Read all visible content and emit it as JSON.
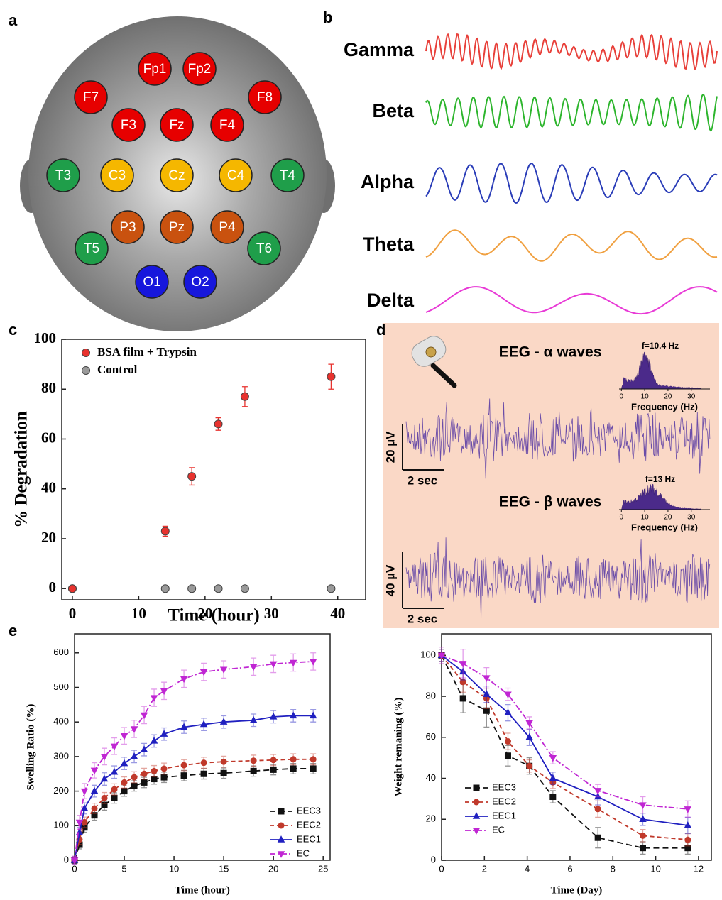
{
  "panel_labels": [
    "a",
    "b",
    "c",
    "d",
    "e"
  ],
  "electrodes": [
    {
      "label": "Fp1",
      "color": "#e60000"
    },
    {
      "label": "Fp2",
      "color": "#e60000"
    },
    {
      "label": "F7",
      "color": "#e60000"
    },
    {
      "label": "F8",
      "color": "#e60000"
    },
    {
      "label": "F3",
      "color": "#e60000"
    },
    {
      "label": "Fz",
      "color": "#e60000"
    },
    {
      "label": "F4",
      "color": "#e60000"
    },
    {
      "label": "T3",
      "color": "#1f9e4a"
    },
    {
      "label": "C3",
      "color": "#f5b700"
    },
    {
      "label": "Cz",
      "color": "#f5b700"
    },
    {
      "label": "C4",
      "color": "#f5b700"
    },
    {
      "label": "T4",
      "color": "#1f9e4a"
    },
    {
      "label": "P3",
      "color": "#c9520f"
    },
    {
      "label": "Pz",
      "color": "#c9520f"
    },
    {
      "label": "P4",
      "color": "#c9520f"
    },
    {
      "label": "T5",
      "color": "#1f9e4a"
    },
    {
      "label": "T6",
      "color": "#1f9e4a"
    },
    {
      "label": "O1",
      "color": "#1717dc"
    },
    {
      "label": "O2",
      "color": "#1717dc"
    }
  ],
  "waves": [
    {
      "name": "Gamma",
      "color": "#e8403a"
    },
    {
      "name": "Beta",
      "color": "#2db52d"
    },
    {
      "name": "Alpha",
      "color": "#2a3db8"
    },
    {
      "name": "Theta",
      "color": "#f0a040"
    },
    {
      "name": "Delta",
      "color": "#e83ad6"
    }
  ],
  "eeg": {
    "alpha_title": "EEG  - α waves",
    "alpha_peak": "f=10.4 Hz",
    "beta_title": "EEG  - β waves",
    "beta_peak": "f=13 Hz",
    "frequency_label": "Frequency (Hz)",
    "inset_xlim": [
      -1,
      38
    ],
    "inset_xticks": [
      0,
      10,
      20,
      30
    ],
    "alpha_scale": "20 µV",
    "beta_scale": "40 µV",
    "time_scale": "2 sec",
    "background": "#fad8c6",
    "trace_color": "#6a4ca8"
  },
  "chart_data": [
    {
      "type": "scatter",
      "xlabel": "Time (hour)",
      "ylabel": "% Degradation",
      "xlim": [
        -1.6,
        44.2
      ],
      "ylim": [
        -4.5,
        100
      ],
      "xticks": [
        0,
        10,
        20,
        30,
        40
      ],
      "yticks": [
        0,
        20,
        40,
        60,
        80,
        100
      ],
      "legend": "upper left",
      "series": [
        {
          "name": "BSA film + Trypsin",
          "color": "#e8322e",
          "marker": "circle",
          "x": [
            0,
            14,
            18,
            22,
            26,
            39
          ],
          "values": [
            0,
            23,
            45,
            66,
            77,
            85
          ],
          "errors": [
            0,
            2,
            3.5,
            2.5,
            4,
            5
          ]
        },
        {
          "name": "Control",
          "color": "#9a9a9a",
          "marker": "circle",
          "x": [
            0,
            14,
            18,
            22,
            26,
            39
          ],
          "values": [
            0,
            0,
            0,
            0,
            0,
            0
          ]
        }
      ]
    },
    {
      "type": "line",
      "xlabel": "Time (hour)",
      "ylabel": "Swelling Ratio (%)",
      "xlim": [
        0,
        25.7
      ],
      "ylim": [
        0,
        655
      ],
      "xticks": [
        0,
        5,
        10,
        15,
        20,
        25
      ],
      "yticks": [
        0,
        100,
        200,
        300,
        400,
        500,
        600
      ],
      "legend": "lower right",
      "x": [
        0,
        0.5,
        1,
        2,
        3,
        4,
        5,
        6,
        7,
        8,
        9,
        11,
        13,
        15,
        18,
        20,
        22,
        24
      ],
      "series": [
        {
          "name": "EEC3",
          "color": "#111111",
          "marker": "square",
          "dash": "8,5",
          "values": [
            0,
            45,
            95,
            130,
            160,
            180,
            200,
            215,
            225,
            235,
            240,
            245,
            250,
            252,
            258,
            262,
            265,
            265
          ],
          "errors": [
            10,
            12,
            14,
            14,
            15,
            15,
            15,
            15,
            15,
            15,
            15,
            15,
            15,
            15,
            15,
            15,
            15,
            15
          ]
        },
        {
          "name": "EEC2",
          "color": "#c0392b",
          "marker": "circle",
          "dash": "6,4",
          "values": [
            0,
            60,
            110,
            150,
            180,
            205,
            225,
            240,
            250,
            258,
            265,
            275,
            282,
            285,
            288,
            290,
            292,
            292
          ],
          "errors": [
            10,
            14,
            15,
            15,
            16,
            16,
            16,
            16,
            16,
            16,
            16,
            16,
            16,
            16,
            16,
            16,
            16,
            16
          ]
        },
        {
          "name": "EEC1",
          "color": "#2020c0",
          "marker": "triangle",
          "values": [
            0,
            80,
            150,
            200,
            235,
            255,
            280,
            300,
            320,
            345,
            365,
            385,
            393,
            400,
            405,
            415,
            418,
            418
          ],
          "errors": [
            10,
            15,
            16,
            17,
            18,
            18,
            18,
            18,
            18,
            18,
            18,
            18,
            18,
            18,
            18,
            18,
            18,
            18
          ]
        },
        {
          "name": "EC",
          "color": "#c026d3",
          "marker": "triangle-down",
          "dash": "8,3,2,3",
          "values": [
            0,
            110,
            200,
            260,
            300,
            330,
            360,
            380,
            420,
            470,
            490,
            525,
            545,
            552,
            560,
            568,
            572,
            575
          ],
          "errors": [
            12,
            20,
            22,
            22,
            24,
            24,
            24,
            25,
            25,
            25,
            25,
            25,
            25,
            25,
            25,
            25,
            25,
            25
          ]
        }
      ]
    },
    {
      "type": "line",
      "xlabel": "Time (Day)",
      "ylabel": "Weight remaning (%)",
      "xlim": [
        0,
        12.6
      ],
      "ylim": [
        0,
        110.5
      ],
      "xticks": [
        0,
        2,
        4,
        6,
        8,
        10,
        12
      ],
      "yticks": [
        0,
        20,
        40,
        60,
        80,
        100
      ],
      "legend": "lower left",
      "x": [
        0,
        1,
        2.1,
        3.1,
        4.1,
        5.2,
        7.3,
        9.4,
        11.5
      ],
      "series": [
        {
          "name": "EEC3",
          "color": "#111111",
          "marker": "square",
          "dash": "8,5",
          "values": [
            100,
            79,
            73,
            51,
            46,
            31,
            11,
            6,
            6
          ],
          "errors": [
            3,
            7,
            8,
            5,
            4,
            3,
            5,
            3,
            3
          ]
        },
        {
          "name": "EEC2",
          "color": "#c0392b",
          "marker": "circle",
          "dash": "6,4",
          "values": [
            100,
            87,
            79,
            58,
            46,
            38,
            25,
            12,
            10
          ],
          "errors": [
            3,
            5,
            5,
            4,
            3,
            3,
            4,
            3,
            3
          ]
        },
        {
          "name": "EEC1",
          "color": "#2020c0",
          "marker": "triangle",
          "values": [
            100,
            92,
            81,
            72,
            60,
            40,
            31,
            20,
            17
          ],
          "errors": [
            3,
            4,
            4,
            4,
            4,
            3,
            4,
            3,
            4
          ]
        },
        {
          "name": "EC",
          "color": "#c026d3",
          "marker": "triangle-down",
          "dash": "8,3,2,3",
          "values": [
            100,
            96,
            89,
            81,
            67,
            50,
            34,
            27,
            25
          ],
          "errors": [
            4,
            7,
            5,
            3,
            3,
            3,
            3,
            4,
            4
          ]
        }
      ]
    }
  ]
}
